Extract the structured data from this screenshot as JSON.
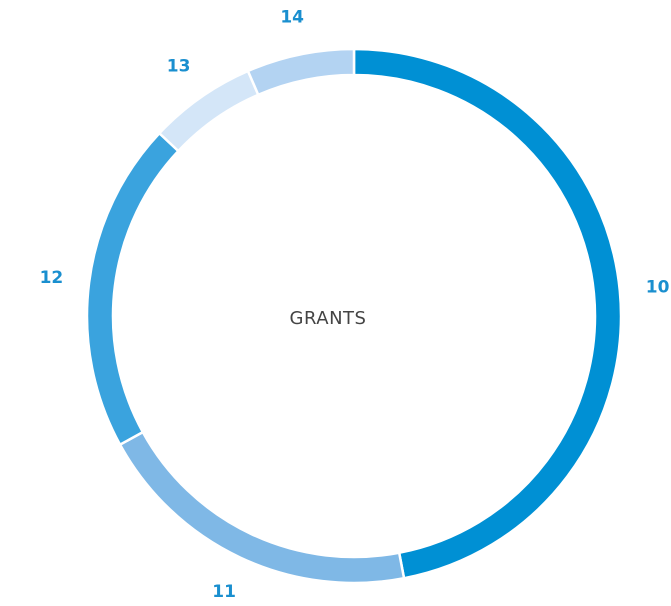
{
  "chart_data": {
    "type": "donut",
    "center_label": "GRANTS",
    "categories": [
      "10",
      "11",
      "12",
      "13",
      "14"
    ],
    "values": [
      47,
      20,
      20,
      6.5,
      6.5
    ],
    "colors": [
      "#0090d4",
      "#7fb8e6",
      "#3aa3de",
      "#d4e6f8",
      "#b3d3f2"
    ]
  }
}
